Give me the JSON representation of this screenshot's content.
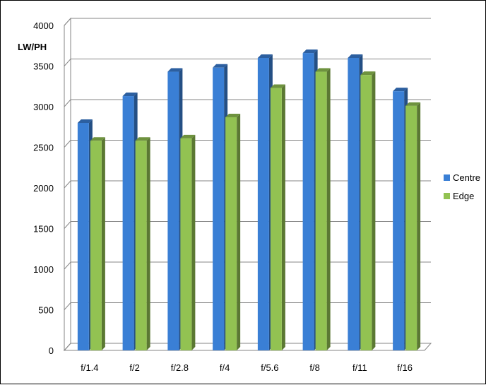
{
  "chart_data": {
    "type": "bar",
    "title": "",
    "xlabel": "",
    "ylabel": "LW/PH",
    "ylim": [
      0,
      4000
    ],
    "yticks": [
      0,
      500,
      1000,
      1500,
      2000,
      2500,
      3000,
      3500,
      4000
    ],
    "categories": [
      "f/1.4",
      "f/2",
      "f/2.8",
      "f/4",
      "f/5.6",
      "f/8",
      "f/11",
      "f/16"
    ],
    "series": [
      {
        "name": "Centre",
        "values": [
          2800,
          3130,
          3430,
          3480,
          3600,
          3660,
          3600,
          3190
        ],
        "color": "#3a7fd5"
      },
      {
        "name": "Edge",
        "values": [
          2580,
          2580,
          2610,
          2870,
          3230,
          3430,
          3390,
          3010
        ],
        "color": "#92c252"
      }
    ],
    "grid": true,
    "style": "3d-clustered-column",
    "legend_position": "right"
  }
}
